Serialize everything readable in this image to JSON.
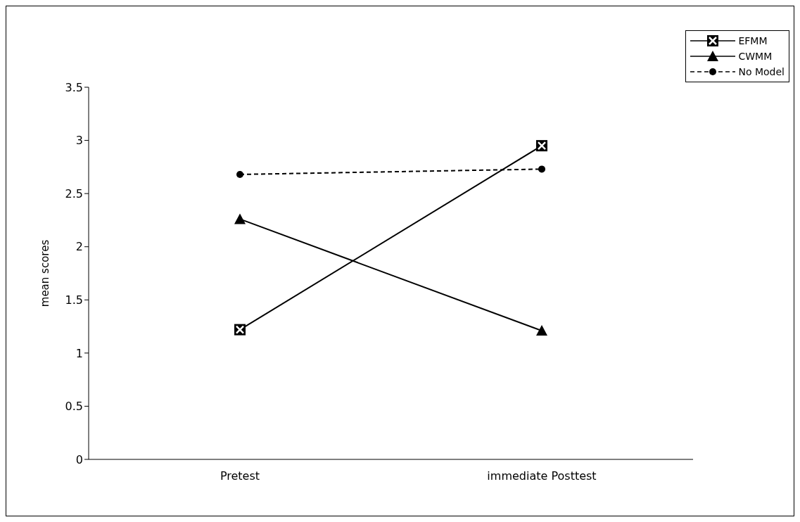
{
  "chart_data": {
    "type": "line",
    "ylabel": "mean scores",
    "categories": [
      "Pretest",
      "immediate Posttest"
    ],
    "series": [
      {
        "name": "EFMM",
        "color": "#000000",
        "marker": "square",
        "line_style": "solid",
        "values": [
          1.22,
          2.95
        ]
      },
      {
        "name": "CWMM",
        "color": "#000000",
        "marker": "triangle",
        "line_style": "solid",
        "values": [
          2.26,
          1.21
        ]
      },
      {
        "name": "No Model",
        "color": "#000000",
        "marker": "circle",
        "line_style": "dashed",
        "values": [
          2.68,
          2.73
        ]
      }
    ],
    "ylim": [
      0,
      3.5
    ],
    "yticks": [
      0,
      0.5,
      1,
      1.5,
      2,
      2.5,
      3,
      3.5
    ],
    "grid": false,
    "legend": "top right"
  }
}
